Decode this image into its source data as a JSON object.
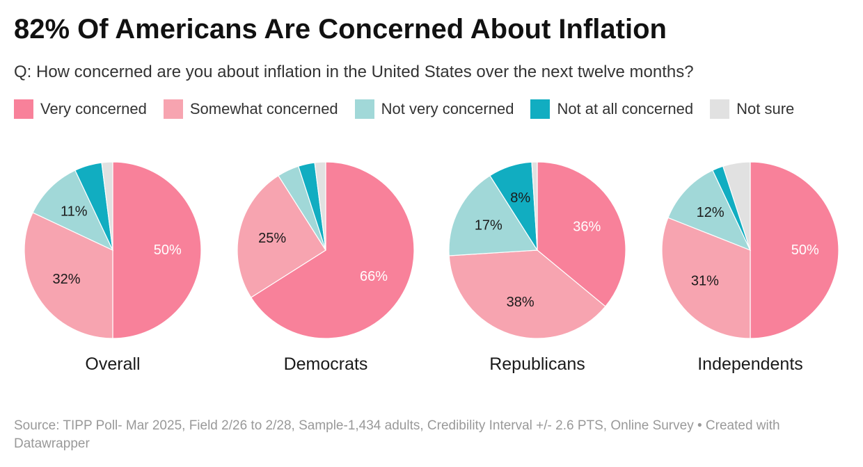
{
  "title": "82% Of Americans Are Concerned About Inflation",
  "subtitle": "Q: How concerned are you about inflation in the United States over the next twelve months?",
  "legend": [
    {
      "label": "Very concerned",
      "color": "#f8819a"
    },
    {
      "label": "Somewhat concerned",
      "color": "#f7a4b0"
    },
    {
      "label": "Not very concerned",
      "color": "#a1d8d8"
    },
    {
      "label": "Not at all concerned",
      "color": "#11adc1"
    },
    {
      "label": "Not sure",
      "color": "#e1e1e1"
    }
  ],
  "chart_data": {
    "type": "pie",
    "categories": [
      "Very concerned",
      "Somewhat concerned",
      "Not very concerned",
      "Not at all concerned",
      "Not sure"
    ],
    "colors": [
      "#f8819a",
      "#f7a4b0",
      "#a1d8d8",
      "#11adc1",
      "#e1e1e1"
    ],
    "pies": [
      {
        "name": "Overall",
        "values": [
          50,
          32,
          11,
          5,
          2
        ],
        "labels": [
          "50%",
          "32%",
          "11%",
          "",
          ""
        ]
      },
      {
        "name": "Democrats",
        "values": [
          66,
          25,
          4,
          3,
          2
        ],
        "labels": [
          "66%",
          "25%",
          "",
          "",
          ""
        ]
      },
      {
        "name": "Republicans",
        "values": [
          36,
          38,
          17,
          8,
          1
        ],
        "labels": [
          "36%",
          "38%",
          "17%",
          "8%",
          ""
        ]
      },
      {
        "name": "Independents",
        "values": [
          50,
          31,
          12,
          2,
          5
        ],
        "labels": [
          "50%",
          "31%",
          "12%",
          "",
          ""
        ]
      }
    ]
  },
  "footer": "Source: TIPP Poll- Mar 2025, Field 2/26 to 2/28, Sample-1,434 adults, Credibility Interval +/- 2.6 PTS, Online Survey • Created with Datawrapper"
}
